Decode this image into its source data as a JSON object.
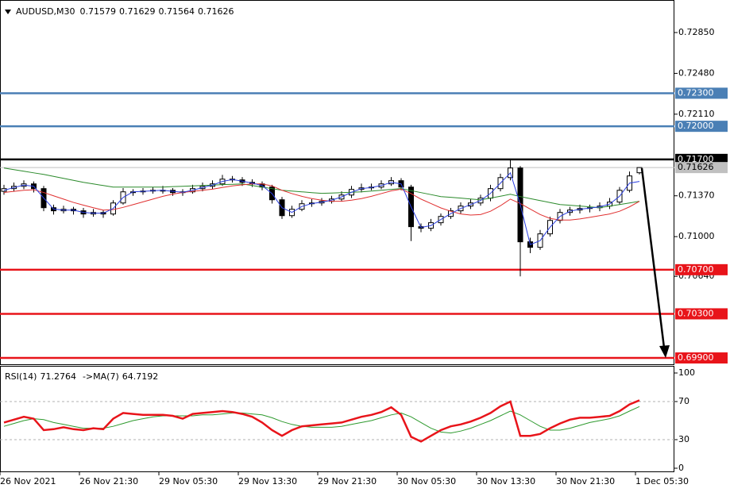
{
  "chart_data": {
    "type": "candlestick",
    "title": "AUDUSD,M30",
    "categories": [
      "26 Nov 2021",
      null,
      null,
      null,
      null,
      null,
      null,
      null,
      "26 Nov 21:30",
      null,
      null,
      null,
      null,
      null,
      null,
      null,
      "29 Nov 05:30",
      null,
      null,
      null,
      null,
      null,
      null,
      null,
      "29 Nov 13:30",
      null,
      null,
      null,
      null,
      null,
      null,
      null,
      "29 Nov 21:30",
      null,
      null,
      null,
      null,
      null,
      null,
      null,
      "30 Nov 05:30",
      null,
      null,
      null,
      null,
      null,
      null,
      null,
      "30 Nov 13:30",
      null,
      null,
      null,
      null,
      null,
      null,
      null,
      "30 Nov 21:30",
      null,
      null,
      null,
      null,
      null,
      null,
      null,
      "1 Dec 05:30"
    ],
    "candles": [
      [
        0.7141,
        0.7147,
        0.7138,
        0.71435
      ],
      [
        0.71435,
        0.7149,
        0.7141,
        0.71456
      ],
      [
        0.71456,
        0.7151,
        0.7143,
        0.71478
      ],
      [
        0.71478,
        0.715,
        0.714,
        0.71435
      ],
      [
        0.71435,
        0.7146,
        0.7123,
        0.71262
      ],
      [
        0.71262,
        0.7129,
        0.712,
        0.71234
      ],
      [
        0.71234,
        0.7128,
        0.7121,
        0.71248
      ],
      [
        0.71248,
        0.7127,
        0.712,
        0.71234
      ],
      [
        0.71234,
        0.7126,
        0.7117,
        0.71205
      ],
      [
        0.71205,
        0.7125,
        0.7118,
        0.71219
      ],
      [
        0.71219,
        0.7124,
        0.7117,
        0.71205
      ],
      [
        0.71205,
        0.7133,
        0.7119,
        0.71305
      ],
      [
        0.71305,
        0.7144,
        0.7129,
        0.71406
      ],
      [
        0.71406,
        0.7143,
        0.7137,
        0.71406
      ],
      [
        0.71406,
        0.7144,
        0.7138,
        0.71413
      ],
      [
        0.71413,
        0.7145,
        0.7139,
        0.7142
      ],
      [
        0.7142,
        0.7146,
        0.7139,
        0.7142
      ],
      [
        0.7142,
        0.7144,
        0.7137,
        0.71399
      ],
      [
        0.71399,
        0.7143,
        0.7137,
        0.71406
      ],
      [
        0.71406,
        0.7147,
        0.7139,
        0.71435
      ],
      [
        0.71435,
        0.7149,
        0.7141,
        0.71456
      ],
      [
        0.71456,
        0.7151,
        0.7143,
        0.71478
      ],
      [
        0.71478,
        0.7156,
        0.7146,
        0.71521
      ],
      [
        0.71521,
        0.7155,
        0.7149,
        0.71514
      ],
      [
        0.71514,
        0.7154,
        0.7146,
        0.71492
      ],
      [
        0.71492,
        0.7152,
        0.7145,
        0.71478
      ],
      [
        0.71478,
        0.715,
        0.7142,
        0.71449
      ],
      [
        0.71449,
        0.7147,
        0.713,
        0.71334
      ],
      [
        0.71334,
        0.7136,
        0.7116,
        0.7119
      ],
      [
        0.7119,
        0.7128,
        0.7117,
        0.71248
      ],
      [
        0.71248,
        0.7133,
        0.7123,
        0.71298
      ],
      [
        0.71298,
        0.7134,
        0.7127,
        0.71305
      ],
      [
        0.71305,
        0.7135,
        0.7128,
        0.7132
      ],
      [
        0.7132,
        0.7137,
        0.713,
        0.71341
      ],
      [
        0.71341,
        0.7141,
        0.7132,
        0.71377
      ],
      [
        0.71377,
        0.7146,
        0.7135,
        0.71428
      ],
      [
        0.71428,
        0.7148,
        0.714,
        0.71442
      ],
      [
        0.71442,
        0.7148,
        0.7142,
        0.71449
      ],
      [
        0.71449,
        0.7151,
        0.7143,
        0.71478
      ],
      [
        0.71478,
        0.7154,
        0.7146,
        0.71507
      ],
      [
        0.71507,
        0.7153,
        0.7142,
        0.71449
      ],
      [
        0.71449,
        0.7147,
        0.7096,
        0.7109
      ],
      [
        0.7109,
        0.7112,
        0.7104,
        0.71076
      ],
      [
        0.71076,
        0.7116,
        0.7105,
        0.71126
      ],
      [
        0.71126,
        0.7121,
        0.711,
        0.71183
      ],
      [
        0.71183,
        0.7126,
        0.7116,
        0.71234
      ],
      [
        0.71234,
        0.7131,
        0.7121,
        0.71277
      ],
      [
        0.71277,
        0.7134,
        0.7125,
        0.71305
      ],
      [
        0.71305,
        0.7138,
        0.7128,
        0.71349
      ],
      [
        0.71349,
        0.7147,
        0.7132,
        0.71435
      ],
      [
        0.71435,
        0.7157,
        0.7141,
        0.71535
      ],
      [
        0.71535,
        0.717,
        0.7151,
        0.71622
      ],
      [
        0.71622,
        0.7164,
        0.7064,
        0.70953
      ],
      [
        0.70953,
        0.7099,
        0.7085,
        0.70903
      ],
      [
        0.70903,
        0.7106,
        0.7088,
        0.71025
      ],
      [
        0.71025,
        0.7118,
        0.71,
        0.71147
      ],
      [
        0.71147,
        0.7125,
        0.7112,
        0.71219
      ],
      [
        0.71219,
        0.7127,
        0.7119,
        0.71241
      ],
      [
        0.71241,
        0.7129,
        0.7121,
        0.71255
      ],
      [
        0.71255,
        0.7129,
        0.7122,
        0.71262
      ],
      [
        0.71262,
        0.7131,
        0.7123,
        0.71277
      ],
      [
        0.71277,
        0.7135,
        0.7125,
        0.71313
      ],
      [
        0.71313,
        0.7145,
        0.7129,
        0.7142
      ],
      [
        0.7142,
        0.7159,
        0.714,
        0.7155
      ],
      [
        0.71579,
        0.71629,
        0.71564,
        0.71626
      ]
    ],
    "up_color": "#ffffff",
    "down_color": "#000000",
    "moving_averages": [
      {
        "color": "#2a8a2a",
        "values": [
          0.71622,
          0.71607,
          0.71593,
          0.71578,
          0.71564,
          0.71546,
          0.71528,
          0.7151,
          0.71492,
          0.71478,
          0.71463,
          0.71449,
          0.71449,
          0.71449,
          0.71449,
          0.71449,
          0.71449,
          0.71453,
          0.71456,
          0.7146,
          0.71463,
          0.71467,
          0.71471,
          0.71474,
          0.71478,
          0.71463,
          0.71449,
          0.71435,
          0.7142,
          0.71413,
          0.71406,
          0.71399,
          0.71392,
          0.71395,
          0.71399,
          0.71402,
          0.71406,
          0.71413,
          0.7142,
          0.71428,
          0.71435,
          0.71417,
          0.71399,
          0.71381,
          0.71363,
          0.71356,
          0.71349,
          0.71341,
          0.71334,
          0.71349,
          0.71366,
          0.71384,
          0.71363,
          0.71345,
          0.71327,
          0.71309,
          0.71291,
          0.71284,
          0.71277,
          0.7127,
          0.71262,
          0.71277,
          0.71291,
          0.71305,
          0.7132
        ]
      },
      {
        "color": "#e03030",
        "values": [
          0.714,
          0.7141,
          0.7142,
          0.71425,
          0.714,
          0.7137,
          0.7134,
          0.7131,
          0.71285,
          0.71262,
          0.7124,
          0.71245,
          0.71265,
          0.7129,
          0.71315,
          0.7134,
          0.71365,
          0.71385,
          0.714,
          0.7141,
          0.7142,
          0.7143,
          0.71445,
          0.7146,
          0.7147,
          0.71478,
          0.71478,
          0.7146,
          0.7142,
          0.7139,
          0.71365,
          0.71345,
          0.7133,
          0.7132,
          0.7132,
          0.7133,
          0.71345,
          0.71365,
          0.7139,
          0.71415,
          0.7143,
          0.7139,
          0.7134,
          0.713,
          0.7126,
          0.7123,
          0.71205,
          0.71195,
          0.712,
          0.7123,
          0.7128,
          0.7134,
          0.713,
          0.7125,
          0.712,
          0.71165,
          0.7115,
          0.7115,
          0.7116,
          0.71175,
          0.7119,
          0.71205,
          0.7123,
          0.7127,
          0.7132
        ]
      },
      {
        "color": "#2b3fe0",
        "values": [
          0.7142,
          0.71445,
          0.71467,
          0.71456,
          0.7135,
          0.7125,
          0.7124,
          0.7124,
          0.7122,
          0.71212,
          0.71212,
          0.71255,
          0.71355,
          0.71406,
          0.7141,
          0.71416,
          0.7142,
          0.7141,
          0.71402,
          0.7142,
          0.71445,
          0.71467,
          0.715,
          0.71517,
          0.71503,
          0.71485,
          0.71463,
          0.7139,
          0.71262,
          0.7122,
          0.71273,
          0.713,
          0.71312,
          0.7133,
          0.7136,
          0.71402,
          0.71435,
          0.71445,
          0.71463,
          0.71492,
          0.71478,
          0.7127,
          0.71083,
          0.711,
          0.71155,
          0.71208,
          0.71255,
          0.7129,
          0.71327,
          0.71392,
          0.71485,
          0.71578,
          0.7129,
          0.70928,
          0.70964,
          0.71086,
          0.71183,
          0.7123,
          0.71248,
          0.71258,
          0.7127,
          0.71295,
          0.71366,
          0.71485,
          0.715
        ]
      }
    ],
    "ylim": [
      0.6985,
      0.73145
    ],
    "yticks": [
      {
        "value": 0.7285,
        "label": "0.72850"
      },
      {
        "value": 0.7248,
        "label": "0.72480"
      },
      {
        "value": 0.7211,
        "label": "0.72110"
      },
      {
        "value": 0.7137,
        "label": "0.71370"
      },
      {
        "value": 0.71,
        "label": "0.71000"
      },
      {
        "value": 0.7064,
        "label": "0.70640"
      }
    ],
    "levels": [
      {
        "value": 0.723,
        "label": "0.72300",
        "color": "#4a7fb5"
      },
      {
        "value": 0.72,
        "label": "0.72000",
        "color": "#4a7fb5"
      },
      {
        "value": 0.717,
        "label": "0.71700",
        "color": "#000000"
      },
      {
        "value": 0.707,
        "label": "0.70700",
        "color": "#e8141a"
      },
      {
        "value": 0.703,
        "label": "0.70300",
        "color": "#e8141a"
      },
      {
        "value": 0.699,
        "label": "0.69900",
        "color": "#e8141a"
      }
    ],
    "current_price_color": "#c0c0c0",
    "rsi": {
      "name": "RSI(14)",
      "color": "#e8141a",
      "values": [
        48,
        51,
        54,
        52,
        40,
        41,
        43,
        41,
        40,
        42,
        41,
        52,
        58,
        57,
        56,
        56,
        56,
        55,
        52,
        57,
        58,
        59,
        60,
        59,
        57,
        54,
        48,
        40,
        34,
        40,
        44,
        45,
        46,
        47,
        48,
        51,
        54,
        56,
        59,
        64,
        56,
        33,
        28,
        34,
        40,
        44,
        46,
        49,
        53,
        58,
        65,
        70,
        34,
        34,
        36,
        42,
        47,
        51,
        53,
        53,
        54,
        55,
        60,
        67,
        71.2764
      ],
      "ma": {
        "name": "->MA(7)",
        "color": "#2e9a2e",
        "values": [
          44,
          47,
          50,
          52,
          51,
          48,
          46,
          44,
          42,
          42,
          42,
          44,
          47,
          50,
          52,
          54,
          55,
          55,
          55,
          55,
          56,
          56,
          57,
          58,
          58,
          57,
          56,
          53,
          49,
          46,
          44,
          43,
          43,
          43,
          44,
          46,
          48,
          50,
          53,
          56,
          58,
          54,
          48,
          42,
          38,
          37,
          39,
          42,
          46,
          50,
          55,
          60,
          56,
          50,
          44,
          40,
          40,
          42,
          45,
          48,
          50,
          52,
          55,
          60,
          64.7192
        ]
      },
      "ylim": [
        0,
        100
      ],
      "yticks": [
        100,
        70,
        30,
        0
      ]
    }
  }
}
